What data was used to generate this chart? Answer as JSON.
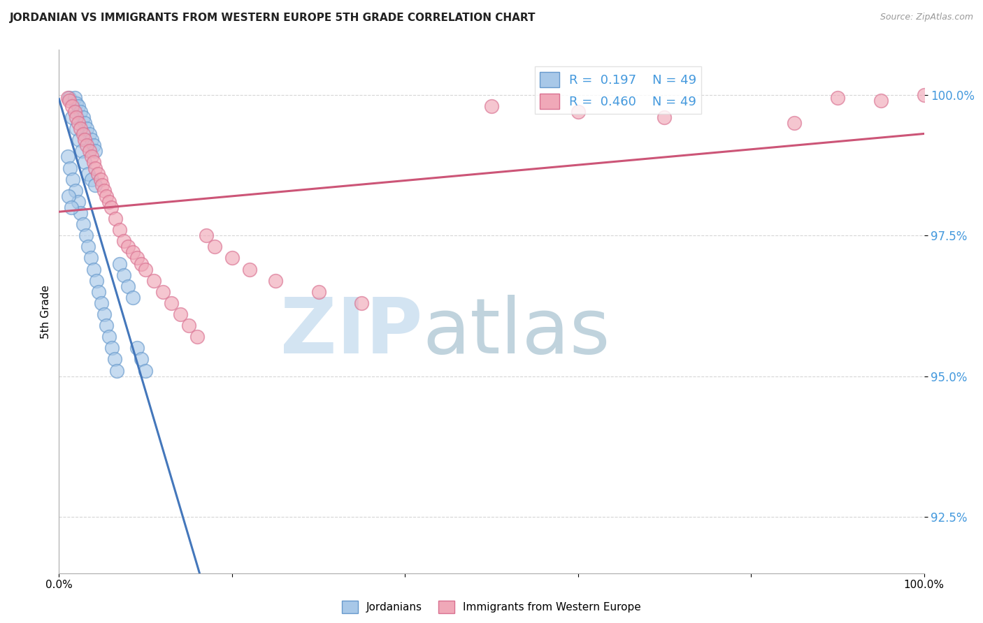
{
  "title": "JORDANIAN VS IMMIGRANTS FROM WESTERN EUROPE 5TH GRADE CORRELATION CHART",
  "source_text": "Source: ZipAtlas.com",
  "ylabel": "5th Grade",
  "R_blue": 0.197,
  "N_blue": 49,
  "R_pink": 0.46,
  "N_pink": 49,
  "blue_face_color": "#a8c8e8",
  "blue_edge_color": "#6699cc",
  "pink_face_color": "#f0a8b8",
  "pink_edge_color": "#d97090",
  "blue_line_color": "#4477bb",
  "pink_line_color": "#cc5577",
  "watermark_zip_color": "#c5ddf0",
  "watermark_atlas_color": "#b8ccd8",
  "grid_color": "#cccccc",
  "ytick_color": "#4499dd",
  "title_color": "#222222",
  "source_color": "#999999",
  "jordanians_x": [
    1.2,
    1.8,
    2.0,
    2.2,
    2.5,
    2.8,
    3.0,
    3.2,
    3.5,
    3.8,
    4.0,
    4.2,
    1.5,
    2.0,
    2.3,
    2.6,
    3.0,
    3.4,
    3.8,
    4.2,
    1.0,
    1.3,
    1.6,
    1.9,
    2.2,
    2.5,
    2.8,
    3.1,
    3.4,
    3.7,
    4.0,
    4.3,
    4.6,
    4.9,
    5.2,
    5.5,
    5.8,
    6.1,
    6.4,
    6.7,
    1.1,
    1.4,
    7.0,
    7.5,
    8.0,
    8.5,
    9.0,
    9.5,
    10.0
  ],
  "jordanians_y": [
    99.95,
    99.95,
    99.85,
    99.8,
    99.7,
    99.6,
    99.5,
    99.4,
    99.3,
    99.2,
    99.1,
    99.0,
    99.6,
    99.4,
    99.2,
    99.0,
    98.8,
    98.6,
    98.5,
    98.4,
    98.9,
    98.7,
    98.5,
    98.3,
    98.1,
    97.9,
    97.7,
    97.5,
    97.3,
    97.1,
    96.9,
    96.7,
    96.5,
    96.3,
    96.1,
    95.9,
    95.7,
    95.5,
    95.3,
    95.1,
    98.2,
    98.0,
    97.0,
    96.8,
    96.6,
    96.4,
    95.5,
    95.3,
    95.1
  ],
  "western_eu_x": [
    1.0,
    1.2,
    1.5,
    1.8,
    2.0,
    2.2,
    2.5,
    2.8,
    3.0,
    3.2,
    3.5,
    3.8,
    4.0,
    4.2,
    4.5,
    4.8,
    5.0,
    5.2,
    5.5,
    5.8,
    6.0,
    6.5,
    7.0,
    7.5,
    8.0,
    8.5,
    9.0,
    9.5,
    10.0,
    11.0,
    12.0,
    13.0,
    14.0,
    15.0,
    16.0,
    17.0,
    18.0,
    20.0,
    22.0,
    25.0,
    30.0,
    35.0,
    50.0,
    60.0,
    70.0,
    85.0,
    90.0,
    95.0,
    100.0
  ],
  "western_eu_y": [
    99.95,
    99.9,
    99.8,
    99.7,
    99.6,
    99.5,
    99.4,
    99.3,
    99.2,
    99.1,
    99.0,
    98.9,
    98.8,
    98.7,
    98.6,
    98.5,
    98.4,
    98.3,
    98.2,
    98.1,
    98.0,
    97.8,
    97.6,
    97.4,
    97.3,
    97.2,
    97.1,
    97.0,
    96.9,
    96.7,
    96.5,
    96.3,
    96.1,
    95.9,
    95.7,
    97.5,
    97.3,
    97.1,
    96.9,
    96.7,
    96.5,
    96.3,
    99.8,
    99.7,
    99.6,
    99.5,
    99.95,
    99.9,
    100.0
  ],
  "xlim": [
    0,
    100
  ],
  "ylim": [
    91.5,
    100.8
  ],
  "yticks": [
    92.5,
    95.0,
    97.5,
    100.0
  ],
  "xticks": [
    0,
    20,
    40,
    60,
    80,
    100
  ]
}
